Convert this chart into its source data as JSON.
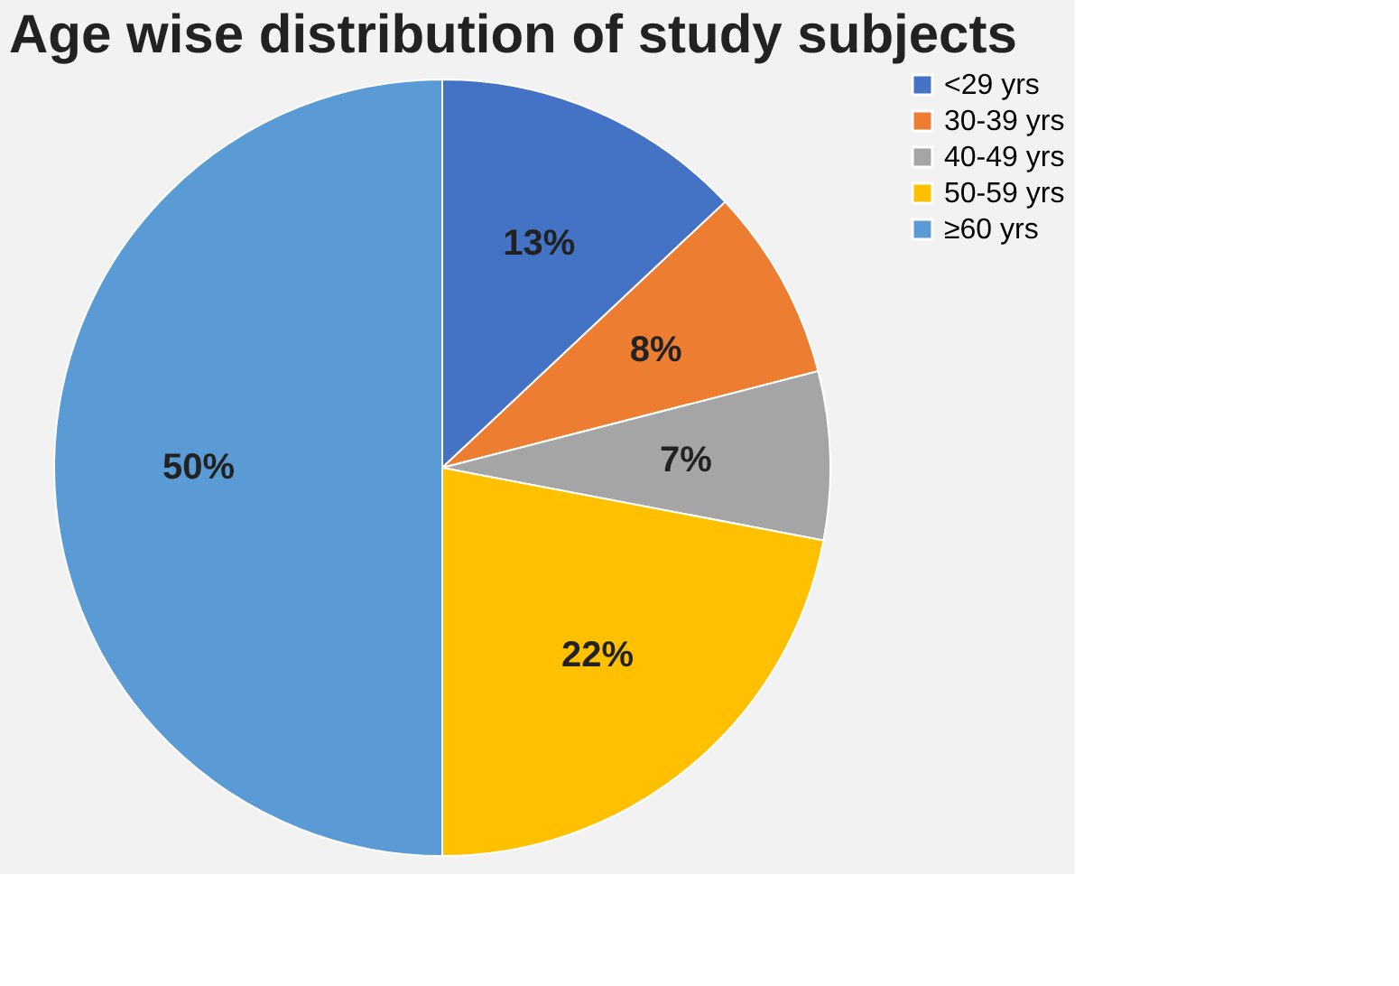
{
  "chart_data": {
    "type": "pie",
    "title": "Age wise distribution of study subjects",
    "categories": [
      "<29 yrs",
      "30-39 yrs",
      "40-49 yrs",
      "50-59 yrs",
      "≥60 yrs"
    ],
    "values": [
      13,
      8,
      7,
      22,
      50
    ],
    "colors": [
      "#4472c4",
      "#ed7d31",
      "#a5a5a5",
      "#ffc000",
      "#5b9bd5"
    ],
    "value_labels": [
      "13%",
      "8%",
      "7%",
      "22%",
      "50%"
    ],
    "legend": "right"
  }
}
